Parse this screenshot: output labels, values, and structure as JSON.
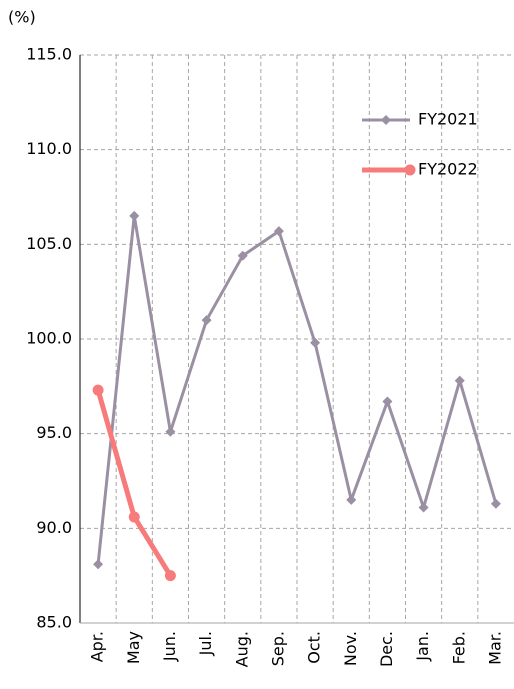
{
  "chart_data": {
    "type": "line",
    "y_axis_label": "(%)",
    "categories": [
      "Apr.",
      "May",
      "Jun.",
      "Jul.",
      "Aug.",
      "Sep.",
      "Oct.",
      "Nov.",
      "Dec.",
      "Jan.",
      "Feb.",
      "Mar."
    ],
    "series": [
      {
        "name": "FY2021",
        "color": "#9a8fa3",
        "marker": "diamond",
        "values": [
          88.1,
          106.5,
          95.1,
          101.0,
          104.4,
          105.7,
          99.8,
          91.5,
          96.7,
          91.1,
          97.8,
          91.3
        ]
      },
      {
        "name": "FY2022",
        "color": "#f77b7b",
        "marker": "circle",
        "values": [
          97.3,
          90.6,
          87.5,
          null,
          null,
          null,
          null,
          null,
          null,
          null,
          null,
          null
        ]
      }
    ],
    "ylim": [
      85,
      115
    ],
    "yticks": [
      {
        "value": 85,
        "label": "85.0"
      },
      {
        "value": 90,
        "label": "90.0"
      },
      {
        "value": 95,
        "label": "95.0"
      },
      {
        "value": 100,
        "label": "100.0"
      },
      {
        "value": 105,
        "label": "105.0"
      },
      {
        "value": 110,
        "label": "110.0"
      },
      {
        "value": 115,
        "label": "115.0"
      }
    ],
    "grid": true,
    "legend": "upper right"
  }
}
